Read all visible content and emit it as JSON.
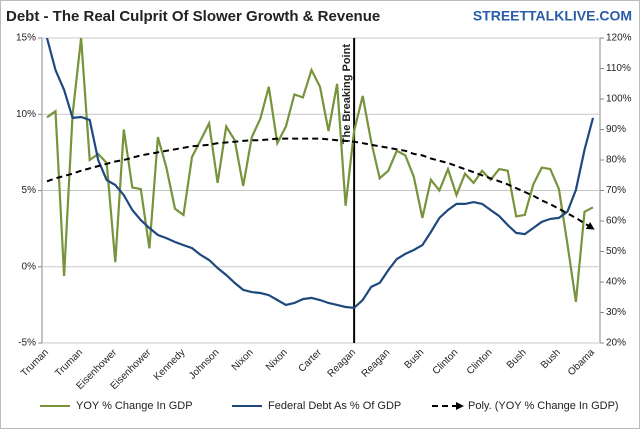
{
  "chart_data": {
    "type": "line",
    "title": "Debt - The Real Culprit Of Slower Growth & Revenue",
    "brand": "STREETTALKLIVE.COM",
    "annotation": "The Breaking Point",
    "annotation_category": 36,
    "categories": [
      "Truman",
      null,
      null,
      null,
      "Truman",
      null,
      null,
      null,
      "Eisenhower",
      null,
      null,
      null,
      "Eisenhower",
      null,
      null,
      null,
      "Kennedy",
      null,
      null,
      null,
      "Johnson",
      null,
      null,
      null,
      "Nixon",
      null,
      null,
      null,
      "Nixon",
      null,
      null,
      null,
      "Carter",
      null,
      null,
      null,
      "Reagan",
      null,
      null,
      null,
      "Reagan",
      null,
      null,
      null,
      "Bush",
      null,
      null,
      null,
      "Clinton",
      null,
      null,
      null,
      "Clinton",
      null,
      null,
      null,
      "Bush",
      null,
      null,
      null,
      "Bush",
      null,
      null,
      null,
      "Obama"
    ],
    "series": [
      {
        "name": "YOY % Change In GDP",
        "color": "#77933c",
        "axis": "y",
        "values": [
          9.8,
          10.2,
          -0.6,
          10,
          15,
          7,
          7.4,
          6.8,
          0.3,
          9,
          5.2,
          5.1,
          1.2,
          8.5,
          6.5,
          3.8,
          3.4,
          7.2,
          8.3,
          9.4,
          5.5,
          9.2,
          8.3,
          5.3,
          8.5,
          9.7,
          11.8,
          8.1,
          9.2,
          11.3,
          11.1,
          12.9,
          11.8,
          8.9,
          12,
          4,
          8.9,
          11.2,
          8.2,
          5.8,
          6.3,
          7.6,
          7.3,
          5.9,
          3.2,
          5.7,
          5,
          6.4,
          4.7,
          6.1,
          5.5,
          6.3,
          5.7,
          6.4,
          6.3,
          3.3,
          3.4,
          5.4,
          6.5,
          6.4,
          5.1,
          1.5,
          -2.3,
          3.6,
          3.9
        ]
      },
      {
        "name": "Federal Debt As % Of GDP",
        "color": "#1f497d",
        "axis": "y2",
        "values": [
          120,
          109.5,
          103,
          93.8,
          94.1,
          93.1,
          80,
          73.4,
          71.8,
          68.5,
          63.6,
          60.3,
          57.7,
          55.4,
          54.4,
          53.1,
          52.1,
          51.1,
          48.9,
          47.2,
          44.6,
          42.3,
          39.7,
          37.4,
          36.7,
          36.4,
          35.7,
          34.1,
          32.5,
          33.1,
          34.4,
          34.8,
          34.1,
          33.1,
          32.5,
          31.8,
          31.5,
          34.1,
          38.4,
          39.7,
          43.9,
          47.5,
          49.2,
          50.5,
          52.1,
          56.4,
          61,
          63.6,
          65.6,
          65.6,
          66.2,
          65.6,
          63.6,
          61.6,
          58.7,
          56.1,
          55.7,
          57.7,
          59.7,
          60.7,
          61,
          63,
          70.2,
          83.3,
          93.8
        ]
      },
      {
        "name": "Poly. (YOY % Change In GDP)",
        "color": "#000000",
        "axis": "y",
        "dashed": true,
        "values": [
          5.6,
          5.8,
          5.95,
          6.1,
          6.3,
          6.45,
          6.6,
          6.75,
          6.9,
          7.0,
          7.15,
          7.3,
          7.4,
          7.5,
          7.6,
          7.7,
          7.8,
          7.9,
          7.95,
          8.0,
          8.1,
          8.15,
          8.2,
          8.25,
          8.3,
          8.3,
          8.35,
          8.4,
          8.4,
          8.4,
          8.4,
          8.4,
          8.4,
          8.35,
          8.3,
          8.25,
          8.2,
          8.1,
          8.0,
          7.9,
          7.8,
          7.7,
          7.6,
          7.4,
          7.3,
          7.1,
          6.95,
          6.8,
          6.6,
          6.4,
          6.2,
          6.0,
          5.8,
          5.6,
          5.4,
          5.15,
          4.9,
          4.65,
          4.35,
          4.1,
          3.8,
          3.5,
          3.2,
          2.85,
          2.5
        ]
      }
    ],
    "ylim": [
      -5,
      15
    ],
    "yticks": [
      {
        "value": -5,
        "label": "-5%"
      },
      {
        "value": 0,
        "label": "0%"
      },
      {
        "value": 5,
        "label": "5%"
      },
      {
        "value": 10,
        "label": "10%"
      },
      {
        "value": 15,
        "label": "15%"
      }
    ],
    "y2lim": [
      20,
      120
    ],
    "y2ticks": [
      {
        "value": 20,
        "label": "20%"
      },
      {
        "value": 30,
        "label": "30%"
      },
      {
        "value": 40,
        "label": "40%"
      },
      {
        "value": 50,
        "label": "50%"
      },
      {
        "value": 60,
        "label": "60%"
      },
      {
        "value": 70,
        "label": "70%"
      },
      {
        "value": 80,
        "label": "80%"
      },
      {
        "value": 90,
        "label": "90%"
      },
      {
        "value": 100,
        "label": "100%"
      },
      {
        "value": 110,
        "label": "110%"
      },
      {
        "value": 120,
        "label": "120%"
      }
    ],
    "grid": true
  }
}
